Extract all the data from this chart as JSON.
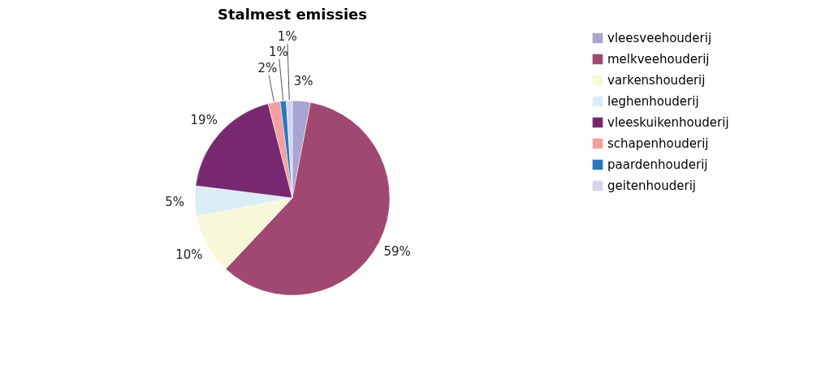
{
  "chart_data": {
    "type": "pie",
    "title": "Stalmest emissies",
    "categories": [
      "vleesveehouderij",
      "melkveehouderij",
      "varkenshouderij",
      "leghenhouderij",
      "vleeskuikenhouderij",
      "schapenhouderij",
      "paardenhouderij",
      "geitenhouderij"
    ],
    "values": [
      3,
      59,
      10,
      5,
      19,
      2,
      1,
      1
    ],
    "value_labels": [
      "3%",
      "59%",
      "10%",
      "5%",
      "19%",
      "2%",
      "1%",
      "1%"
    ],
    "colors": [
      "#a9a5d3",
      "#a04870",
      "#f8f8d8",
      "#d8eef4",
      "#782870",
      "#f4a0a0",
      "#2878c0",
      "#d8d4ec"
    ],
    "legend": "right"
  }
}
